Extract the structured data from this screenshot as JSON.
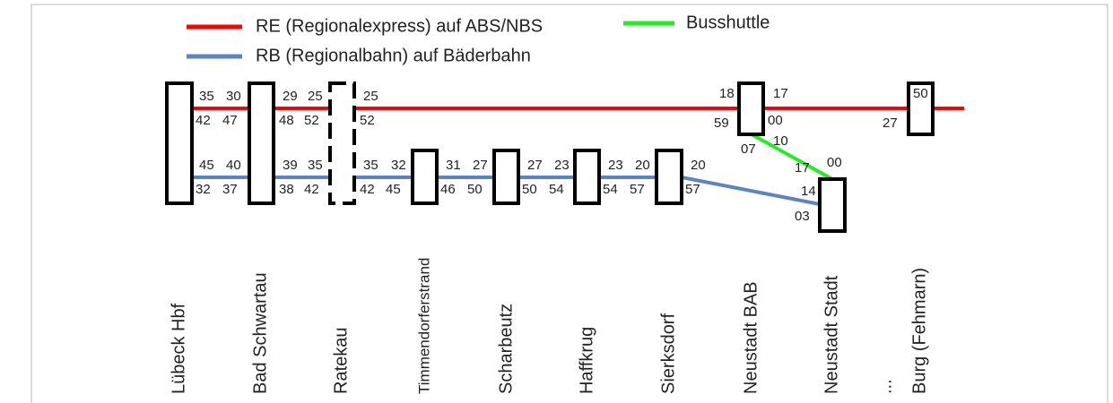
{
  "legend": [
    {
      "label": "RE (Regionalexpress) auf ABS/NBS",
      "color": "#ff0000"
    },
    {
      "label": "RB (Regionalbahn) auf Bäderbahn",
      "color": "#5b85c0"
    },
    {
      "label": "Busshuttle",
      "color": "#22ee22"
    }
  ],
  "stations": [
    "Lübeck Hbf",
    "Bad Schwartau",
    "Ratekau",
    "Timmendorferstrand",
    "Scharbeutz",
    "Haffkrug",
    "Sierksdorf",
    "Neustadt BAB",
    "Neustadt Stadt",
    "...",
    "Burg (Fehmarn)"
  ],
  "times": [
    "35",
    "42",
    "45",
    "32",
    "30",
    "47",
    "40",
    "37",
    "29",
    "48",
    "39",
    "38",
    "25",
    "52",
    "35",
    "42",
    "25",
    "52",
    "35",
    "42",
    "32",
    "45",
    "31",
    "46",
    "27",
    "50",
    "27",
    "50",
    "23",
    "54",
    "23",
    "54",
    "20",
    "57",
    "20",
    "57",
    "18",
    "59",
    "17",
    "00",
    "07",
    "10",
    "17",
    "00",
    "14",
    "03",
    "50",
    "27"
  ]
}
